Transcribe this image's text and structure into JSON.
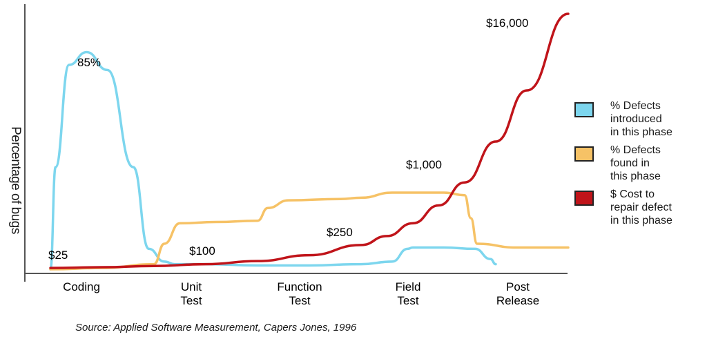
{
  "chart_data": {
    "type": "line",
    "ylabel": "Percentage of bugs",
    "xlabel": "",
    "categories": [
      "Coding",
      "Unit\nTest",
      "Function\nTest",
      "Field\nTest",
      "Post\nRelease"
    ],
    "series": [
      {
        "name": "% Defects introduced in this phase",
        "color": "#7dd6ee",
        "x": [
          0.0,
          0.05,
          0.18,
          0.35,
          0.55,
          0.8,
          0.95,
          1.1,
          1.2,
          1.5,
          2.0,
          2.5,
          3.0,
          3.3,
          3.45,
          3.5,
          3.8,
          4.1,
          4.25,
          4.3
        ],
        "values": [
          0,
          40,
          80,
          85,
          78,
          40,
          8,
          3,
          2,
          2,
          1.5,
          1.5,
          2,
          3,
          8,
          8.5,
          8.5,
          8,
          4,
          2
        ]
      },
      {
        "name": "% Defects found in this phase",
        "color": "#f6c266",
        "x": [
          0.0,
          0.5,
          1.0,
          1.1,
          1.25,
          1.6,
          2.0,
          2.1,
          2.3,
          2.8,
          3.0,
          3.3,
          3.8,
          4.0,
          4.06,
          4.12,
          4.5,
          5.0
        ],
        "values": [
          0,
          0.5,
          2,
          10,
          18,
          18.5,
          19,
          24,
          27,
          27.5,
          28,
          30,
          30,
          29,
          20,
          10,
          8.5,
          8.5
        ]
      },
      {
        "name": "$ Cost to repair defect in this phase",
        "color": "#c0141a",
        "x": [
          0.0,
          0.5,
          1.0,
          1.5,
          2.0,
          2.5,
          3.0,
          3.25,
          3.5,
          3.75,
          4.0,
          4.3,
          4.6,
          5.0
        ],
        "values": [
          0.5,
          0.8,
          1.3,
          2.0,
          3.2,
          5.5,
          9.5,
          13,
          18,
          25,
          34,
          50,
          70,
          100
        ]
      }
    ],
    "annotations": [
      "85%",
      "$25",
      "$100",
      "$250",
      "$1,000",
      "$16,000"
    ],
    "source": "Source: Applied Software Measurement, Capers Jones, 1996",
    "grid": false,
    "legend_position": "right"
  }
}
